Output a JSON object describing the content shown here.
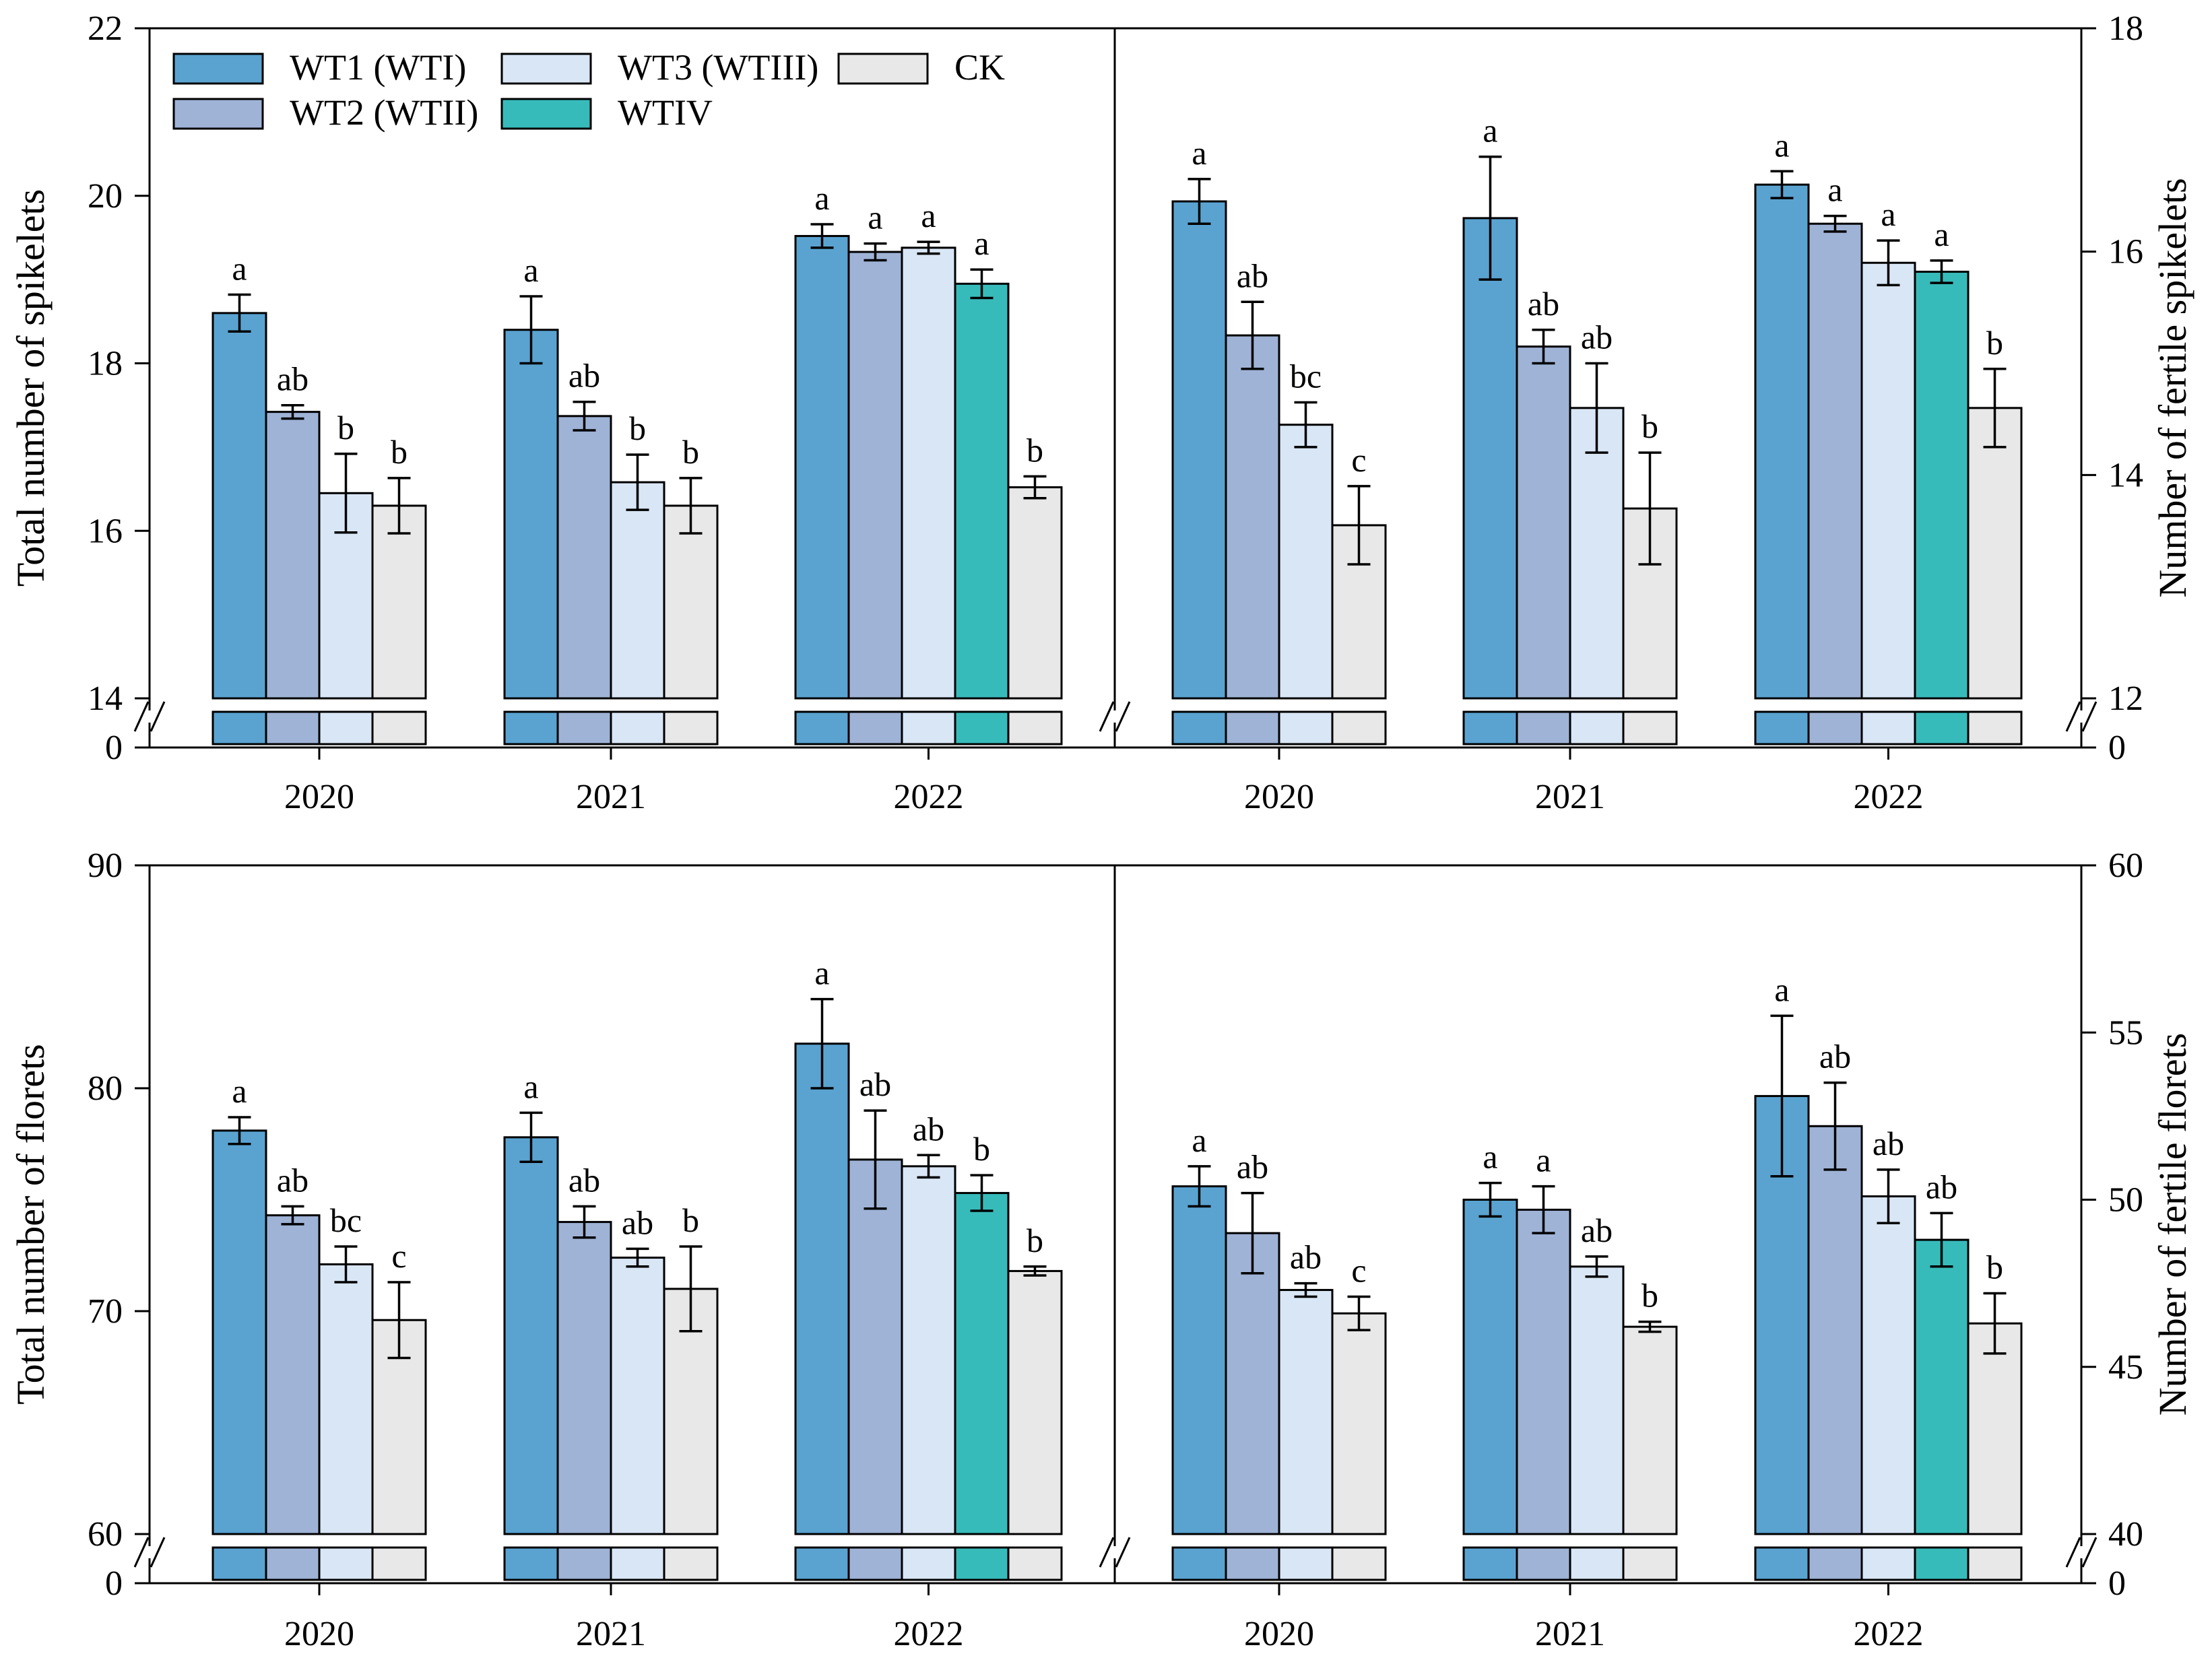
{
  "legend": [
    {
      "key": "WT1",
      "label": "WT1 (WTI)",
      "color": "#5aa3d0"
    },
    {
      "key": "WT2",
      "label": "WT2 (WTII)",
      "color": "#9fb3d6"
    },
    {
      "key": "WT3",
      "label": "WT3 (WTIII)",
      "color": "#d9e6f5"
    },
    {
      "key": "WTIV",
      "label": "WTIV",
      "color": "#37bbba"
    },
    {
      "key": "CK",
      "label": "CK",
      "color": "#e8e8e8"
    }
  ],
  "chart_data": [
    {
      "type": "bar",
      "panel": "top",
      "categories": [
        "2020",
        "2021",
        "2022"
      ],
      "series_order": [
        "WT1",
        "WT2",
        "WT3",
        "WTIV",
        "CK"
      ],
      "left": {
        "ylabel": "Total number of spikelets",
        "yticks": [
          "14",
          "16",
          "18",
          "20",
          "22"
        ],
        "ylim": [
          14,
          22
        ],
        "zero_tick": "0",
        "groups": [
          {
            "year": "2020",
            "bars": [
              {
                "series": "WT1",
                "value": 18.6,
                "err": 0.22,
                "sig": "a"
              },
              {
                "series": "WT2",
                "value": 17.42,
                "err": 0.08,
                "sig": "ab"
              },
              {
                "series": "WT3",
                "value": 16.45,
                "err": 0.47,
                "sig": "b"
              },
              {
                "series": "CK",
                "value": 16.3,
                "err": 0.33,
                "sig": "b"
              }
            ]
          },
          {
            "year": "2021",
            "bars": [
              {
                "series": "WT1",
                "value": 18.4,
                "err": 0.4,
                "sig": "a"
              },
              {
                "series": "WT2",
                "value": 17.37,
                "err": 0.17,
                "sig": "ab"
              },
              {
                "series": "WT3",
                "value": 16.58,
                "err": 0.33,
                "sig": "b"
              },
              {
                "series": "CK",
                "value": 16.3,
                "err": 0.33,
                "sig": "b"
              }
            ]
          },
          {
            "year": "2022",
            "bars": [
              {
                "series": "WT1",
                "value": 19.52,
                "err": 0.14,
                "sig": "a"
              },
              {
                "series": "WT2",
                "value": 19.33,
                "err": 0.1,
                "sig": "a"
              },
              {
                "series": "WT3",
                "value": 19.38,
                "err": 0.07,
                "sig": "a"
              },
              {
                "series": "WTIV",
                "value": 18.95,
                "err": 0.17,
                "sig": "a"
              },
              {
                "series": "CK",
                "value": 16.52,
                "err": 0.13,
                "sig": "b"
              }
            ]
          }
        ]
      },
      "right": {
        "ylabel": "Number of fertile spikelets",
        "yticks": [
          "12",
          "14",
          "16",
          "18"
        ],
        "ylim": [
          12,
          18
        ],
        "zero_tick": "0",
        "groups": [
          {
            "year": "2020",
            "bars": [
              {
                "series": "WT1",
                "value": 16.45,
                "err": 0.2,
                "sig": "a"
              },
              {
                "series": "WT2",
                "value": 15.25,
                "err": 0.3,
                "sig": "ab"
              },
              {
                "series": "WT3",
                "value": 14.45,
                "err": 0.2,
                "sig": "bc"
              },
              {
                "series": "CK",
                "value": 13.55,
                "err": 0.35,
                "sig": "c"
              }
            ]
          },
          {
            "year": "2021",
            "bars": [
              {
                "series": "WT1",
                "value": 16.3,
                "err": 0.55,
                "sig": "a"
              },
              {
                "series": "WT2",
                "value": 15.15,
                "err": 0.15,
                "sig": "ab"
              },
              {
                "series": "WT3",
                "value": 14.6,
                "err": 0.4,
                "sig": "ab"
              },
              {
                "series": "CK",
                "value": 13.7,
                "err": 0.5,
                "sig": "b"
              }
            ]
          },
          {
            "year": "2022",
            "bars": [
              {
                "series": "WT1",
                "value": 16.6,
                "err": 0.12,
                "sig": "a"
              },
              {
                "series": "WT2",
                "value": 16.25,
                "err": 0.07,
                "sig": "a"
              },
              {
                "series": "WT3",
                "value": 15.9,
                "err": 0.2,
                "sig": "a"
              },
              {
                "series": "WTIV",
                "value": 15.82,
                "err": 0.1,
                "sig": "a"
              },
              {
                "series": "CK",
                "value": 14.6,
                "err": 0.35,
                "sig": "b"
              }
            ]
          }
        ]
      }
    },
    {
      "type": "bar",
      "panel": "bottom",
      "categories": [
        "2020",
        "2021",
        "2022"
      ],
      "series_order": [
        "WT1",
        "WT2",
        "WT3",
        "WTIV",
        "CK"
      ],
      "left": {
        "ylabel": "Total number of florets",
        "yticks": [
          "60",
          "70",
          "80",
          "90"
        ],
        "ylim": [
          60,
          90
        ],
        "zero_tick": "0",
        "groups": [
          {
            "year": "2020",
            "bars": [
              {
                "series": "WT1",
                "value": 78.1,
                "err": 0.6,
                "sig": "a"
              },
              {
                "series": "WT2",
                "value": 74.3,
                "err": 0.4,
                "sig": "ab"
              },
              {
                "series": "WT3",
                "value": 72.1,
                "err": 0.8,
                "sig": "bc"
              },
              {
                "series": "CK",
                "value": 69.6,
                "err": 1.7,
                "sig": "c"
              }
            ]
          },
          {
            "year": "2021",
            "bars": [
              {
                "series": "WT1",
                "value": 77.8,
                "err": 1.1,
                "sig": "a"
              },
              {
                "series": "WT2",
                "value": 74.0,
                "err": 0.7,
                "sig": "ab"
              },
              {
                "series": "WT3",
                "value": 72.4,
                "err": 0.4,
                "sig": "ab"
              },
              {
                "series": "CK",
                "value": 71.0,
                "err": 1.9,
                "sig": "b"
              }
            ]
          },
          {
            "year": "2022",
            "bars": [
              {
                "series": "WT1",
                "value": 82.0,
                "err": 2.0,
                "sig": "a"
              },
              {
                "series": "WT2",
                "value": 76.8,
                "err": 2.2,
                "sig": "ab"
              },
              {
                "series": "WT3",
                "value": 76.5,
                "err": 0.5,
                "sig": "ab"
              },
              {
                "series": "WTIV",
                "value": 75.3,
                "err": 0.8,
                "sig": "b"
              },
              {
                "series": "CK",
                "value": 71.8,
                "err": 0.2,
                "sig": "b"
              }
            ]
          }
        ]
      },
      "right": {
        "ylabel": "Number of fertile florets",
        "yticks": [
          "40",
          "45",
          "50",
          "55",
          "60"
        ],
        "ylim": [
          40,
          60
        ],
        "zero_tick": "0",
        "groups": [
          {
            "year": "2020",
            "bars": [
              {
                "series": "WT1",
                "value": 50.4,
                "err": 0.6,
                "sig": "a"
              },
              {
                "series": "WT2",
                "value": 49.0,
                "err": 1.2,
                "sig": "ab"
              },
              {
                "series": "WT3",
                "value": 47.3,
                "err": 0.2,
                "sig": "ab"
              },
              {
                "series": "CK",
                "value": 46.6,
                "err": 0.5,
                "sig": "c"
              }
            ]
          },
          {
            "year": "2021",
            "bars": [
              {
                "series": "WT1",
                "value": 50.0,
                "err": 0.5,
                "sig": "a"
              },
              {
                "series": "WT2",
                "value": 49.7,
                "err": 0.7,
                "sig": "a"
              },
              {
                "series": "WT3",
                "value": 48.0,
                "err": 0.3,
                "sig": "ab"
              },
              {
                "series": "CK",
                "value": 46.2,
                "err": 0.15,
                "sig": "b"
              }
            ]
          },
          {
            "year": "2022",
            "bars": [
              {
                "series": "WT1",
                "value": 53.1,
                "err": 2.4,
                "sig": "a"
              },
              {
                "series": "WT2",
                "value": 52.2,
                "err": 1.3,
                "sig": "ab"
              },
              {
                "series": "WT3",
                "value": 50.1,
                "err": 0.8,
                "sig": "ab"
              },
              {
                "series": "WTIV",
                "value": 48.8,
                "err": 0.8,
                "sig": "ab"
              },
              {
                "series": "CK",
                "value": 46.3,
                "err": 0.9,
                "sig": "b"
              }
            ]
          }
        ]
      }
    }
  ]
}
